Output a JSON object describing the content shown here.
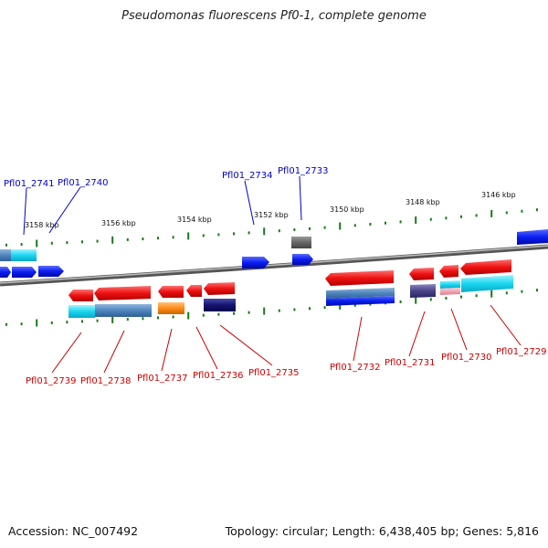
{
  "title": "Pseudomonas fluorescens Pf0-1, complete genome",
  "footer": {
    "accession": "Accession: NC_007492",
    "topology": "Topology: circular; Length: 6,438,405 bp; Genes: 5,816"
  },
  "scale_labels": [
    "3158 kbp",
    "3156 kbp",
    "3154 kbp",
    "3152 kbp",
    "3150 kbp",
    "3148 kbp",
    "3146 kbp"
  ],
  "colors": {
    "forward_label": "#0000cc",
    "reverse_label": "#cc0000",
    "forward_gene": "#0a1ef0",
    "reverse_gene": "#ee1111",
    "tick": "#1a7a1a",
    "backbone": "#888888"
  },
  "genes_forward": [
    {
      "label": "Pfl01_2741"
    },
    {
      "label": "Pfl01_2740"
    },
    {
      "label": "Pfl01_2734"
    },
    {
      "label": "Pfl01_2733"
    }
  ],
  "genes_reverse": [
    {
      "label": "Pfl01_2739"
    },
    {
      "label": "Pfl01_2738"
    },
    {
      "label": "Pfl01_2737"
    },
    {
      "label": "Pfl01_2736"
    },
    {
      "label": "Pfl01_2735"
    },
    {
      "label": "Pfl01_2732"
    },
    {
      "label": "Pfl01_2731"
    },
    {
      "label": "Pfl01_2730"
    },
    {
      "label": "Pfl01_2729"
    }
  ]
}
